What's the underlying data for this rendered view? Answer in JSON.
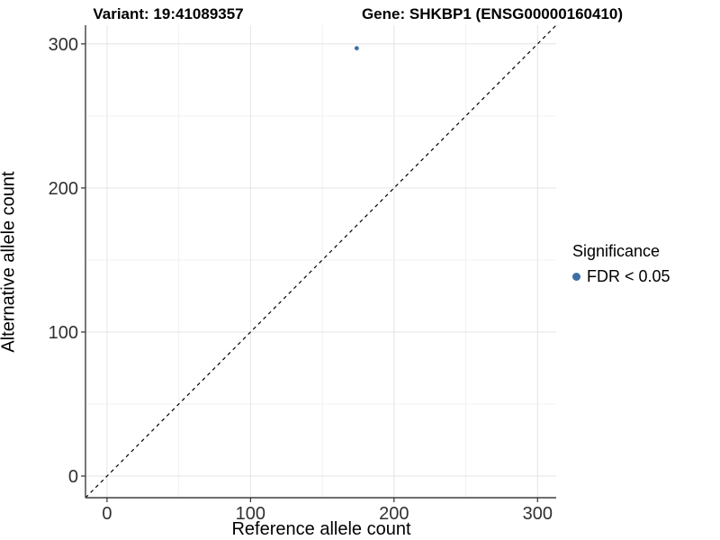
{
  "titles": {
    "variant": "Variant: 19:41089357",
    "gene": "Gene: SHKBP1 (ENSG00000160410)"
  },
  "chart_data": {
    "type": "scatter",
    "xlabel": "Reference allele count",
    "ylabel": "Alternative allele count",
    "xlim": [
      -15,
      313
    ],
    "ylim": [
      -15,
      313
    ],
    "x_ticks": [
      0,
      100,
      200,
      300
    ],
    "y_ticks": [
      0,
      100,
      200,
      300
    ],
    "x_minor_ticks": [
      50,
      150,
      250
    ],
    "y_minor_ticks": [
      50,
      150,
      250
    ],
    "grid": "major+minor",
    "identity_line": {
      "slope": 1,
      "intercept": 0,
      "style": "dashed",
      "color": "#000000"
    },
    "series": [
      {
        "name": "FDR < 0.05",
        "color": "#3d6fa5",
        "points": [
          {
            "x": 174,
            "y": 297
          }
        ]
      }
    ],
    "legend": {
      "title": "Significance",
      "position": "right",
      "entries": [
        {
          "label": "FDR < 0.05",
          "color": "#3d6fa5"
        }
      ]
    },
    "colors": {
      "major_grid": "#e4e4e4",
      "minor_grid": "#f1f1f1",
      "axis_line": "#3f3f3f",
      "tick_mark": "#333333",
      "tick_label": "#303030"
    }
  }
}
